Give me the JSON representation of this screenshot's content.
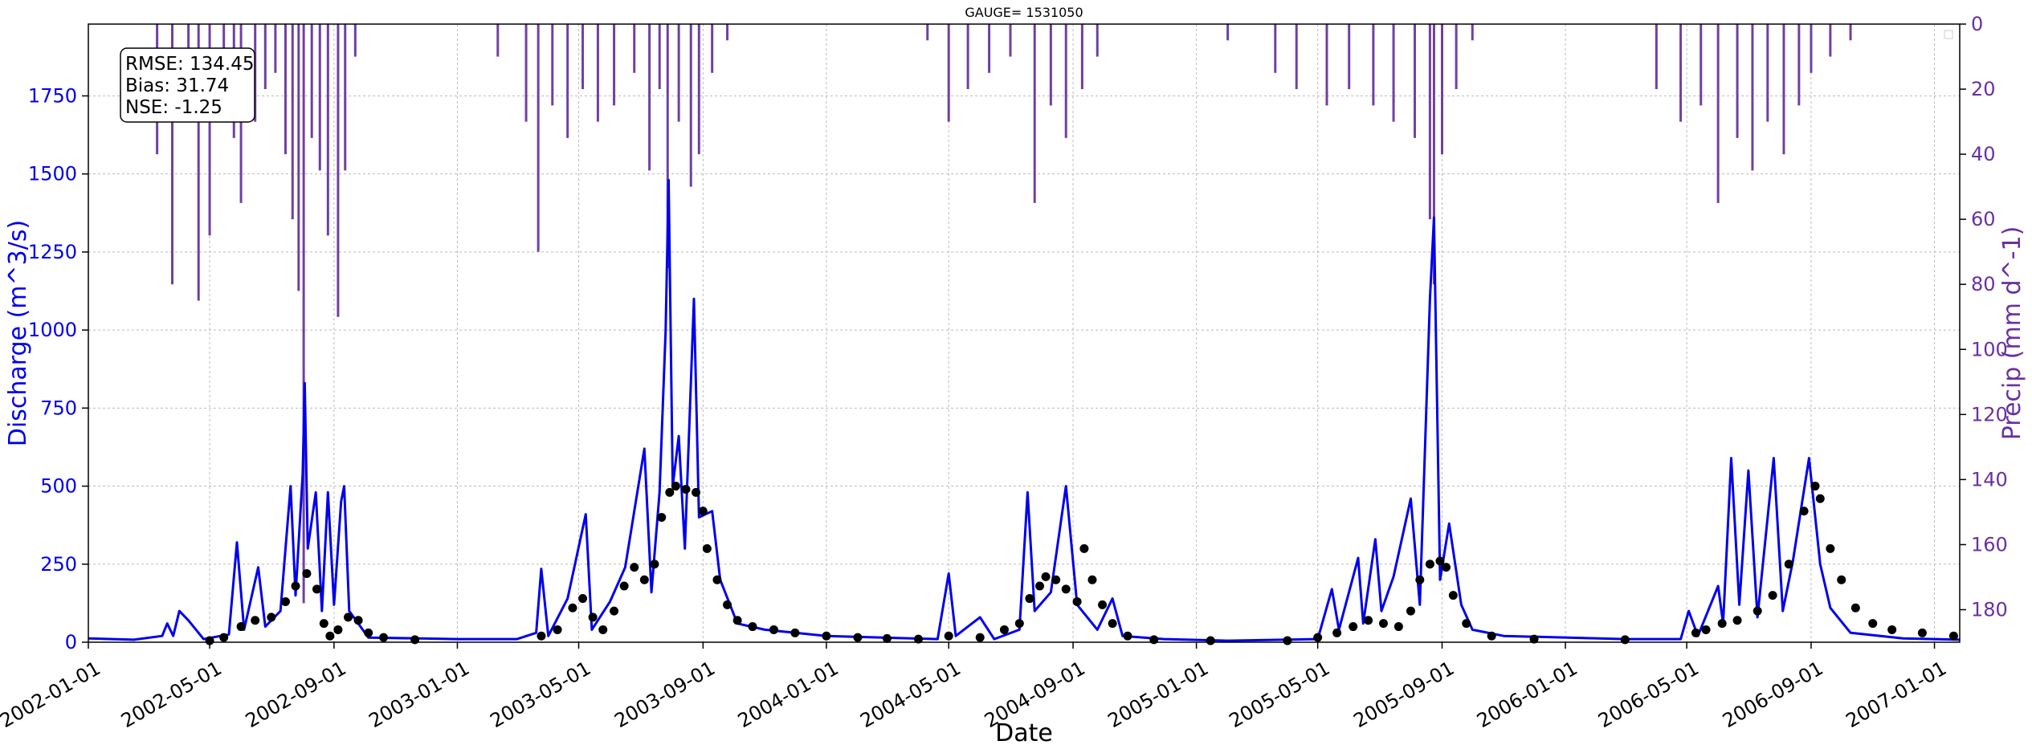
{
  "chart_data": {
    "type": "line",
    "title": "GAUGE= 1531050",
    "xlabel": "Date",
    "ylabel_left": "Discharge (m^3/s)",
    "ylabel_right": "Precip (mm d^-1)",
    "xlim": [
      "2002-01-01",
      "2007-01-26"
    ],
    "ylim_left": [
      0,
      1980
    ],
    "ylim_right": [
      190,
      0
    ],
    "right_axis_inverted": true,
    "grid": true,
    "x_ticks": [
      "2002-01-01",
      "2002-05-01",
      "2002-09-01",
      "2003-01-01",
      "2003-05-01",
      "2003-09-01",
      "2004-01-01",
      "2004-05-01",
      "2004-09-01",
      "2005-01-01",
      "2005-05-01",
      "2005-09-01",
      "2006-01-01",
      "2006-05-01",
      "2006-09-01",
      "2007-01-01"
    ],
    "y_ticks_left": [
      "0",
      "250",
      "500",
      "750",
      "1000",
      "1250",
      "1500",
      "1750"
    ],
    "y_ticks_right": [
      "0",
      "20",
      "40",
      "60",
      "80",
      "100",
      "120",
      "140",
      "160",
      "180"
    ],
    "stats_box": [
      "RMSE: 134.45",
      "Bias: 31.74",
      "NSE: -1.25"
    ],
    "colors": {
      "simulated": "#0000ee",
      "observed": "#000000",
      "precip": "#7040a0",
      "left_axis": "#0000ee",
      "right_axis": "#6a2fa0"
    },
    "series": [
      {
        "style": "line",
        "axis": "left",
        "points": [
          [
            "2002-01-01",
            12
          ],
          [
            "2002-02-15",
            8
          ],
          [
            "2002-03-15",
            20
          ],
          [
            "2002-03-20",
            60
          ],
          [
            "2002-03-26",
            20
          ],
          [
            "2002-04-01",
            100
          ],
          [
            "2002-04-10",
            70
          ],
          [
            "2002-04-25",
            10
          ],
          [
            "2002-05-20",
            25
          ],
          [
            "2002-05-28",
            320
          ],
          [
            "2002-06-04",
            40
          ],
          [
            "2002-06-18",
            240
          ],
          [
            "2002-06-25",
            50
          ],
          [
            "2002-07-10",
            100
          ],
          [
            "2002-07-20",
            500
          ],
          [
            "2002-07-25",
            150
          ],
          [
            "2002-08-01",
            540
          ],
          [
            "2002-08-03",
            830
          ],
          [
            "2002-08-06",
            300
          ],
          [
            "2002-08-14",
            480
          ],
          [
            "2002-08-20",
            100
          ],
          [
            "2002-08-26",
            480
          ],
          [
            "2002-09-01",
            120
          ],
          [
            "2002-09-08",
            450
          ],
          [
            "2002-09-11",
            500
          ],
          [
            "2002-09-16",
            100
          ],
          [
            "2002-09-25",
            60
          ],
          [
            "2002-10-05",
            15
          ],
          [
            "2003-01-01",
            10
          ],
          [
            "2003-03-01",
            10
          ],
          [
            "2003-03-20",
            30
          ],
          [
            "2003-03-25",
            235
          ],
          [
            "2003-04-01",
            20
          ],
          [
            "2003-04-20",
            140
          ],
          [
            "2003-05-08",
            410
          ],
          [
            "2003-05-14",
            40
          ],
          [
            "2003-06-01",
            130
          ],
          [
            "2003-06-16",
            240
          ],
          [
            "2003-07-05",
            620
          ],
          [
            "2003-07-12",
            160
          ],
          [
            "2003-07-20",
            480
          ],
          [
            "2003-07-26",
            1000
          ],
          [
            "2003-07-29",
            1480
          ],
          [
            "2003-08-02",
            500
          ],
          [
            "2003-08-08",
            660
          ],
          [
            "2003-08-14",
            300
          ],
          [
            "2003-08-23",
            1100
          ],
          [
            "2003-08-28",
            400
          ],
          [
            "2003-09-10",
            420
          ],
          [
            "2003-09-18",
            200
          ],
          [
            "2003-10-05",
            60
          ],
          [
            "2003-11-01",
            40
          ],
          [
            "2004-01-01",
            20
          ],
          [
            "2004-04-20",
            10
          ],
          [
            "2004-05-01",
            220
          ],
          [
            "2004-05-08",
            20
          ],
          [
            "2004-06-01",
            80
          ],
          [
            "2004-06-15",
            10
          ],
          [
            "2004-07-10",
            40
          ],
          [
            "2004-07-18",
            480
          ],
          [
            "2004-07-25",
            100
          ],
          [
            "2004-08-10",
            160
          ],
          [
            "2004-08-25",
            500
          ],
          [
            "2004-09-05",
            120
          ],
          [
            "2004-09-25",
            40
          ],
          [
            "2004-10-10",
            140
          ],
          [
            "2004-10-20",
            20
          ],
          [
            "2004-11-30",
            10
          ],
          [
            "2005-02-01",
            5
          ],
          [
            "2005-05-01",
            10
          ],
          [
            "2005-05-15",
            170
          ],
          [
            "2005-05-22",
            40
          ],
          [
            "2005-06-10",
            270
          ],
          [
            "2005-06-15",
            60
          ],
          [
            "2005-06-27",
            330
          ],
          [
            "2005-07-03",
            100
          ],
          [
            "2005-07-15",
            210
          ],
          [
            "2005-08-01",
            460
          ],
          [
            "2005-08-10",
            120
          ],
          [
            "2005-08-20",
            1100
          ],
          [
            "2005-08-24",
            1360
          ],
          [
            "2005-08-30",
            200
          ],
          [
            "2005-09-08",
            380
          ],
          [
            "2005-09-20",
            120
          ],
          [
            "2005-10-01",
            40
          ],
          [
            "2005-11-01",
            20
          ],
          [
            "2006-03-01",
            10
          ],
          [
            "2006-04-25",
            10
          ],
          [
            "2006-05-03",
            100
          ],
          [
            "2006-05-12",
            20
          ],
          [
            "2006-06-01",
            180
          ],
          [
            "2006-06-06",
            60
          ],
          [
            "2006-06-14",
            590
          ],
          [
            "2006-06-22",
            120
          ],
          [
            "2006-07-01",
            550
          ],
          [
            "2006-07-10",
            80
          ],
          [
            "2006-07-26",
            590
          ],
          [
            "2006-08-04",
            100
          ],
          [
            "2006-08-14",
            260
          ],
          [
            "2006-08-30",
            590
          ],
          [
            "2006-09-10",
            250
          ],
          [
            "2006-09-20",
            110
          ],
          [
            "2006-10-10",
            30
          ],
          [
            "2006-12-01",
            12
          ],
          [
            "2007-01-26",
            8
          ]
        ]
      },
      {
        "style": "points",
        "axis": "left",
        "points": [
          [
            "2002-05-01",
            5
          ],
          [
            "2002-05-15",
            15
          ],
          [
            "2002-06-01",
            50
          ],
          [
            "2002-06-15",
            70
          ],
          [
            "2002-07-01",
            80
          ],
          [
            "2002-07-15",
            130
          ],
          [
            "2002-07-25",
            180
          ],
          [
            "2002-08-05",
            220
          ],
          [
            "2002-08-15",
            170
          ],
          [
            "2002-08-22",
            60
          ],
          [
            "2002-08-28",
            20
          ],
          [
            "2002-09-05",
            40
          ],
          [
            "2002-09-15",
            80
          ],
          [
            "2002-09-25",
            70
          ],
          [
            "2002-10-05",
            30
          ],
          [
            "2002-10-20",
            15
          ],
          [
            "2002-11-20",
            8
          ],
          [
            "2003-03-25",
            20
          ],
          [
            "2003-04-10",
            40
          ],
          [
            "2003-04-25",
            110
          ],
          [
            "2003-05-05",
            140
          ],
          [
            "2003-05-15",
            80
          ],
          [
            "2003-05-25",
            40
          ],
          [
            "2003-06-05",
            100
          ],
          [
            "2003-06-15",
            180
          ],
          [
            "2003-06-25",
            240
          ],
          [
            "2003-07-05",
            200
          ],
          [
            "2003-07-15",
            250
          ],
          [
            "2003-07-22",
            400
          ],
          [
            "2003-07-30",
            480
          ],
          [
            "2003-08-05",
            500
          ],
          [
            "2003-08-15",
            490
          ],
          [
            "2003-08-25",
            480
          ],
          [
            "2003-09-01",
            420
          ],
          [
            "2003-09-05",
            300
          ],
          [
            "2003-09-15",
            200
          ],
          [
            "2003-09-25",
            120
          ],
          [
            "2003-10-05",
            70
          ],
          [
            "2003-10-20",
            50
          ],
          [
            "2003-11-10",
            40
          ],
          [
            "2003-12-01",
            30
          ],
          [
            "2004-01-01",
            20
          ],
          [
            "2004-02-01",
            15
          ],
          [
            "2004-03-01",
            12
          ],
          [
            "2004-04-01",
            10
          ],
          [
            "2004-05-01",
            20
          ],
          [
            "2004-06-01",
            15
          ],
          [
            "2004-06-25",
            40
          ],
          [
            "2004-07-10",
            60
          ],
          [
            "2004-07-20",
            140
          ],
          [
            "2004-07-30",
            180
          ],
          [
            "2004-08-05",
            210
          ],
          [
            "2004-08-15",
            200
          ],
          [
            "2004-08-25",
            170
          ],
          [
            "2004-09-05",
            130
          ],
          [
            "2004-09-12",
            300
          ],
          [
            "2004-09-20",
            200
          ],
          [
            "2004-09-30",
            120
          ],
          [
            "2004-10-10",
            60
          ],
          [
            "2004-10-25",
            20
          ],
          [
            "2004-11-20",
            8
          ],
          [
            "2005-01-15",
            5
          ],
          [
            "2005-04-01",
            5
          ],
          [
            "2005-05-01",
            15
          ],
          [
            "2005-05-20",
            30
          ],
          [
            "2005-06-05",
            50
          ],
          [
            "2005-06-20",
            70
          ],
          [
            "2005-07-05",
            60
          ],
          [
            "2005-07-20",
            50
          ],
          [
            "2005-08-01",
            100
          ],
          [
            "2005-08-10",
            200
          ],
          [
            "2005-08-20",
            250
          ],
          [
            "2005-08-30",
            260
          ],
          [
            "2005-09-05",
            240
          ],
          [
            "2005-09-12",
            150
          ],
          [
            "2005-09-25",
            60
          ],
          [
            "2005-10-20",
            20
          ],
          [
            "2005-12-01",
            10
          ],
          [
            "2006-03-01",
            8
          ],
          [
            "2006-05-10",
            30
          ],
          [
            "2006-05-20",
            40
          ],
          [
            "2006-06-05",
            60
          ],
          [
            "2006-06-20",
            70
          ],
          [
            "2006-07-10",
            100
          ],
          [
            "2006-07-25",
            150
          ],
          [
            "2006-08-10",
            250
          ],
          [
            "2006-08-25",
            420
          ],
          [
            "2006-09-05",
            500
          ],
          [
            "2006-09-10",
            460
          ],
          [
            "2006-09-20",
            300
          ],
          [
            "2006-10-01",
            200
          ],
          [
            "2006-10-15",
            110
          ],
          [
            "2006-11-01",
            60
          ],
          [
            "2006-11-20",
            40
          ],
          [
            "2006-12-20",
            30
          ],
          [
            "2007-01-20",
            20
          ]
        ]
      },
      {
        "style": "bars",
        "axis": "right",
        "points": [
          [
            "2002-02-20",
            0
          ],
          [
            "2002-03-10",
            40
          ],
          [
            "2002-03-25",
            80
          ],
          [
            "2002-04-10",
            10
          ],
          [
            "2002-04-20",
            85
          ],
          [
            "2002-05-01",
            65
          ],
          [
            "2002-05-15",
            15
          ],
          [
            "2002-05-25",
            35
          ],
          [
            "2002-06-01",
            55
          ],
          [
            "2002-06-15",
            30
          ],
          [
            "2002-06-25",
            20
          ],
          [
            "2002-07-05",
            15
          ],
          [
            "2002-07-15",
            40
          ],
          [
            "2002-07-22",
            60
          ],
          [
            "2002-07-28",
            82
          ],
          [
            "2002-08-02",
            178
          ],
          [
            "2002-08-10",
            35
          ],
          [
            "2002-08-18",
            45
          ],
          [
            "2002-08-26",
            65
          ],
          [
            "2002-09-05",
            90
          ],
          [
            "2002-09-12",
            45
          ],
          [
            "2002-09-22",
            10
          ],
          [
            "2003-02-10",
            10
          ],
          [
            "2003-03-10",
            30
          ],
          [
            "2003-03-22",
            70
          ],
          [
            "2003-04-05",
            25
          ],
          [
            "2003-04-20",
            35
          ],
          [
            "2003-05-05",
            20
          ],
          [
            "2003-05-20",
            30
          ],
          [
            "2003-06-05",
            25
          ],
          [
            "2003-06-25",
            15
          ],
          [
            "2003-07-10",
            45
          ],
          [
            "2003-07-20",
            20
          ],
          [
            "2003-07-28",
            75
          ],
          [
            "2003-08-08",
            30
          ],
          [
            "2003-08-20",
            50
          ],
          [
            "2003-08-28",
            40
          ],
          [
            "2003-09-10",
            15
          ],
          [
            "2003-09-25",
            5
          ],
          [
            "2004-04-10",
            5
          ],
          [
            "2004-05-01",
            30
          ],
          [
            "2004-05-20",
            20
          ],
          [
            "2004-06-10",
            15
          ],
          [
            "2004-07-01",
            10
          ],
          [
            "2004-07-25",
            55
          ],
          [
            "2004-08-10",
            25
          ],
          [
            "2004-08-25",
            35
          ],
          [
            "2004-09-10",
            20
          ],
          [
            "2004-09-25",
            10
          ],
          [
            "2005-02-01",
            5
          ],
          [
            "2005-03-20",
            15
          ],
          [
            "2005-04-10",
            20
          ],
          [
            "2005-05-10",
            25
          ],
          [
            "2005-06-01",
            20
          ],
          [
            "2005-06-25",
            25
          ],
          [
            "2005-07-15",
            30
          ],
          [
            "2005-08-05",
            35
          ],
          [
            "2005-08-20",
            60
          ],
          [
            "2005-08-24",
            80
          ],
          [
            "2005-09-01",
            40
          ],
          [
            "2005-09-15",
            20
          ],
          [
            "2005-10-01",
            5
          ],
          [
            "2006-04-01",
            20
          ],
          [
            "2006-04-25",
            30
          ],
          [
            "2006-05-15",
            25
          ],
          [
            "2006-06-01",
            55
          ],
          [
            "2006-06-20",
            35
          ],
          [
            "2006-07-05",
            45
          ],
          [
            "2006-07-20",
            30
          ],
          [
            "2006-08-05",
            40
          ],
          [
            "2006-08-20",
            25
          ],
          [
            "2006-09-01",
            15
          ],
          [
            "2006-09-20",
            10
          ],
          [
            "2006-10-10",
            5
          ]
        ]
      }
    ]
  }
}
